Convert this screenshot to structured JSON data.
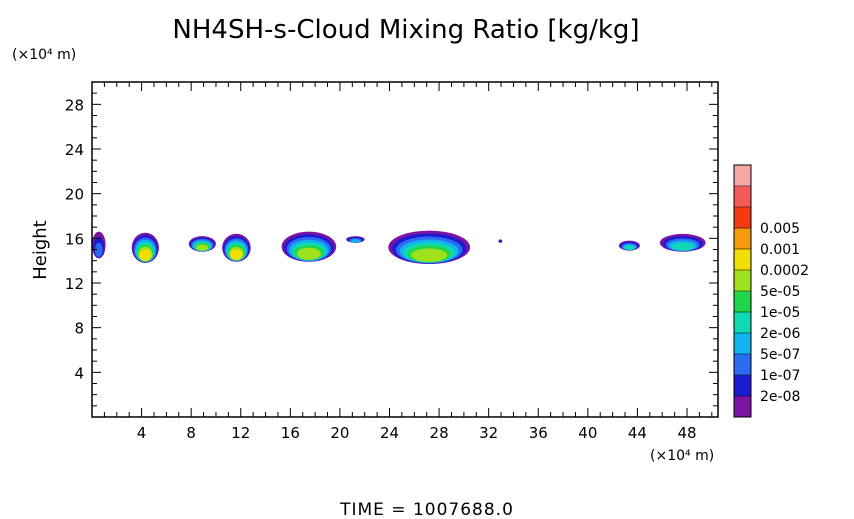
{
  "chart_data": {
    "type": "heatmap",
    "title": "NH4SH-s-Cloud Mixing Ratio [kg/kg]",
    "ylabel": "Height",
    "y_unit": "(×10⁴ m)",
    "x_unit": "(×10⁴ m)",
    "xlim": [
      0,
      50.5
    ],
    "ylim": [
      0,
      30
    ],
    "x_ticks": [
      4,
      8,
      12,
      16,
      20,
      24,
      28,
      32,
      36,
      40,
      44,
      48
    ],
    "y_ticks": [
      4,
      8,
      12,
      16,
      20,
      24,
      28
    ],
    "colorbar": {
      "labels": [
        "2e-08",
        "1e-07",
        "5e-07",
        "2e-06",
        "1e-05",
        "5e-05",
        "0.0002",
        "0.001",
        "0.005"
      ],
      "colors": [
        "#7d13a5",
        "#1b1bd0",
        "#2b6bf2",
        "#12b3ef",
        "#10d8b4",
        "#22d64a",
        "#9ee21e",
        "#f1de05",
        "#f39b0b",
        "#f43a13",
        "#f55a59",
        "#f7a6a6"
      ]
    },
    "clouds": [
      {
        "x": [
          0.0,
          1.1
        ],
        "y": [
          14.2,
          16.6
        ],
        "peak": "1e-07"
      },
      {
        "x": [
          3.2,
          5.4
        ],
        "y": [
          13.8,
          16.5
        ],
        "peak": "0.0002"
      },
      {
        "x": [
          7.8,
          10.0
        ],
        "y": [
          14.8,
          16.2
        ],
        "peak": "5e-05"
      },
      {
        "x": [
          10.5,
          12.8
        ],
        "y": [
          13.9,
          16.4
        ],
        "peak": "0.0002"
      },
      {
        "x": [
          15.3,
          19.7
        ],
        "y": [
          13.9,
          16.6
        ],
        "peak": "5e-05"
      },
      {
        "x": [
          20.5,
          22.0
        ],
        "y": [
          15.6,
          16.2
        ],
        "peak": "5e-07"
      },
      {
        "x": [
          23.9,
          30.5
        ],
        "y": [
          13.7,
          16.7
        ],
        "peak": "5e-05"
      },
      {
        "x": [
          32.8,
          33.1
        ],
        "y": [
          15.6,
          15.9
        ],
        "peak": "2e-08"
      },
      {
        "x": [
          42.5,
          44.2
        ],
        "y": [
          14.9,
          15.8
        ],
        "peak": "2e-06"
      },
      {
        "x": [
          45.8,
          49.5
        ],
        "y": [
          14.8,
          16.4
        ],
        "peak": "2e-06"
      }
    ]
  },
  "footer": {
    "time_label": "TIME  =  1007688.0"
  }
}
